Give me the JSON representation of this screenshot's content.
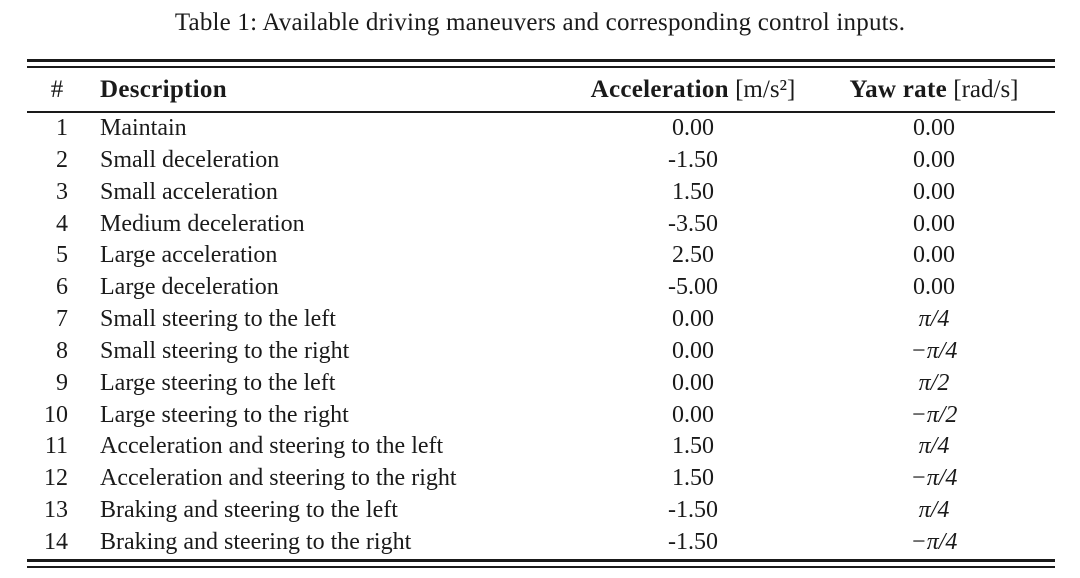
{
  "caption": "Table 1: Available driving maneuvers and corresponding control inputs.",
  "colors": {
    "background": "#ffffff",
    "text": "#1a1a1a",
    "rule": "#1a1a1a"
  },
  "table": {
    "columns": [
      {
        "key": "num",
        "label": "#",
        "unit": ""
      },
      {
        "key": "description",
        "label": "Description",
        "unit": ""
      },
      {
        "key": "acceleration",
        "label": "Acceleration",
        "unit": "[m/s²]"
      },
      {
        "key": "yaw_rate",
        "label": "Yaw rate",
        "unit": "[rad/s]"
      }
    ],
    "rows": [
      {
        "num": "1",
        "description": "Maintain",
        "acceleration": "0.00",
        "yaw_rate": "0.00"
      },
      {
        "num": "2",
        "description": "Small deceleration",
        "acceleration": "-1.50",
        "yaw_rate": "0.00"
      },
      {
        "num": "3",
        "description": "Small acceleration",
        "acceleration": "1.50",
        "yaw_rate": "0.00"
      },
      {
        "num": "4",
        "description": "Medium deceleration",
        "acceleration": "-3.50",
        "yaw_rate": "0.00"
      },
      {
        "num": "5",
        "description": "Large acceleration",
        "acceleration": "2.50",
        "yaw_rate": "0.00"
      },
      {
        "num": "6",
        "description": "Large deceleration",
        "acceleration": "-5.00",
        "yaw_rate": "0.00"
      },
      {
        "num": "7",
        "description": "Small steering to the left",
        "acceleration": "0.00",
        "yaw_rate": "π/4"
      },
      {
        "num": "8",
        "description": "Small steering to the right",
        "acceleration": "0.00",
        "yaw_rate": "−π/4"
      },
      {
        "num": "9",
        "description": "Large steering to the left",
        "acceleration": "0.00",
        "yaw_rate": "π/2"
      },
      {
        "num": "10",
        "description": "Large steering to the right",
        "acceleration": "0.00",
        "yaw_rate": "−π/2"
      },
      {
        "num": "11",
        "description": "Acceleration and steering to the left",
        "acceleration": "1.50",
        "yaw_rate": "π/4"
      },
      {
        "num": "12",
        "description": "Acceleration and steering to the right",
        "acceleration": "1.50",
        "yaw_rate": "−π/4"
      },
      {
        "num": "13",
        "description": "Braking and steering to the left",
        "acceleration": "-1.50",
        "yaw_rate": "π/4"
      },
      {
        "num": "14",
        "description": "Braking and steering to the right",
        "acceleration": "-1.50",
        "yaw_rate": "−π/4"
      }
    ]
  }
}
